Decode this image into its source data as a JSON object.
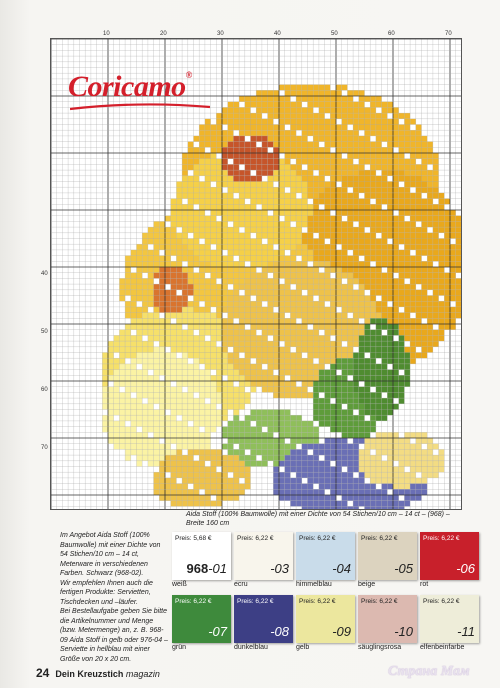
{
  "chart": {
    "top_axis_labels": [
      "10",
      "20",
      "30",
      "40",
      "50",
      "60",
      "70"
    ],
    "left_axis_labels": [
      "40",
      "50",
      "60",
      "70"
    ],
    "logo": {
      "text": "Coricamo",
      "registered": "®",
      "color": "#d41f2b"
    }
  },
  "aida_note": "Aida Stoff (100% Baumwolle) mit einer Dichte von 54 Stichen/10 cm – 14 ct – (968) – Breite 160 cm",
  "left_text": [
    "Im Angebot Aida Stoff (100% Baumwolle) mit einer Dichte von 54 Stichen/10 cm – 14 ct, Meterware in verschiedenen Farben. Schwarz (968-02).",
    "Wir empfehlen Ihnen auch die fertigen Produkte: Servietten, Tischdecken und –läufer.",
    "Bei Bestellaufgabe geben Sie bitte die Artikelnummer und Menge (bzw. Metermenge) an, z. B. 968-09 Aida Stoff in gelb oder 976-04 – Serviette in hellblau mit einer Größe von 20 x 20 cm."
  ],
  "swatches": [
    {
      "price": "Preis: 5,68 €",
      "number": "-01",
      "prefix": "968",
      "name": "weiß",
      "color": "#ffffff",
      "text_color": "#222222"
    },
    {
      "price": "Preis: 6,22 €",
      "number": "-03",
      "prefix": "",
      "name": "ecru",
      "color": "#f8f5ec",
      "text_color": "#222222"
    },
    {
      "price": "Preis: 6,22 €",
      "number": "-04",
      "prefix": "",
      "name": "himmelblau",
      "color": "#c9dcea",
      "text_color": "#222222"
    },
    {
      "price": "Preis: 6,22 €",
      "number": "-05",
      "prefix": "",
      "name": "beige",
      "color": "#dcd3bf",
      "text_color": "#222222"
    },
    {
      "price": "Preis: 6,22 €",
      "number": "-06",
      "prefix": "",
      "name": "rot",
      "color": "#c8202b",
      "text_color": "#ffffff"
    },
    {
      "price": "Preis: 6,22 €",
      "number": "-07",
      "prefix": "",
      "name": "grün",
      "color": "#3e8a3c",
      "text_color": "#ffffff"
    },
    {
      "price": "Preis: 6,22 €",
      "number": "-08",
      "prefix": "",
      "name": "dunkelblau",
      "color": "#3d3f85",
      "text_color": "#ffffff"
    },
    {
      "price": "Preis: 6,22 €",
      "number": "-09",
      "prefix": "",
      "name": "gelb",
      "color": "#ece79e",
      "text_color": "#222222"
    },
    {
      "price": "Preis: 6,22 €",
      "number": "-10",
      "prefix": "",
      "name": "säuglingsrosa",
      "color": "#dcb9b0",
      "text_color": "#222222"
    },
    {
      "price": "Preis: 6,22 €",
      "number": "-11",
      "prefix": "",
      "name": "elfenbeinfarbe",
      "color": "#eeedd9",
      "text_color": "#222222"
    }
  ],
  "footer": {
    "page_number": "24",
    "title": "Dein Kreuzstich",
    "magazine": "magazin"
  },
  "watermark": "Страна Мам"
}
